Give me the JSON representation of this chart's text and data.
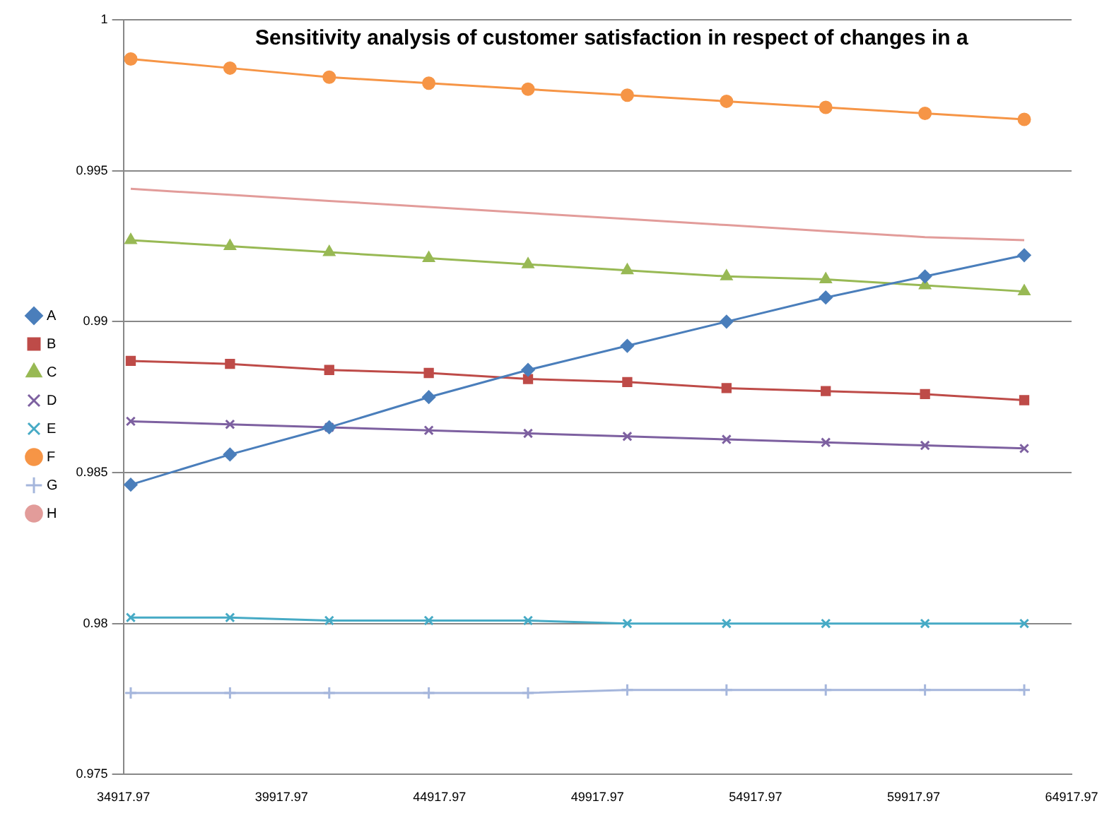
{
  "chart_data": {
    "type": "line",
    "title": "Sensitivity analysis of customer satisfaction in respect of changes in a",
    "x": [
      35150,
      38290,
      41430,
      44580,
      47720,
      50860,
      54000,
      57140,
      60280,
      63420
    ],
    "xlim": [
      34917.97,
      64917.97
    ],
    "xticks": [
      34917.97,
      39917.97,
      44917.97,
      49917.97,
      54917.97,
      59917.97,
      64917.97
    ],
    "ylim": [
      0.975,
      1
    ],
    "yticks": [
      0.975,
      0.98,
      0.985,
      0.99,
      0.995,
      1
    ],
    "grid": "y",
    "legend": "left",
    "series": [
      {
        "name": "A",
        "color": "#4a7ebb",
        "marker": "diamond",
        "values": [
          0.9846,
          0.9856,
          0.9865,
          0.9875,
          0.9884,
          0.9892,
          0.99,
          0.9908,
          0.9915,
          0.9922
        ]
      },
      {
        "name": "B",
        "color": "#be4b48",
        "marker": "square",
        "values": [
          0.9887,
          0.9886,
          0.9884,
          0.9883,
          0.9881,
          0.988,
          0.9878,
          0.9877,
          0.9876,
          0.9874
        ]
      },
      {
        "name": "C",
        "color": "#98b954",
        "marker": "triangle",
        "values": [
          0.9927,
          0.9925,
          0.9923,
          0.9921,
          0.9919,
          0.9917,
          0.9915,
          0.9914,
          0.9912,
          0.991
        ]
      },
      {
        "name": "D",
        "color": "#7d60a0",
        "marker": "cross",
        "values": [
          0.9867,
          0.9866,
          0.9865,
          0.9864,
          0.9863,
          0.9862,
          0.9861,
          0.986,
          0.9859,
          0.9858
        ]
      },
      {
        "name": "E",
        "color": "#46aac5",
        "marker": "cross",
        "values": [
          0.9802,
          0.9802,
          0.9801,
          0.9801,
          0.9801,
          0.98,
          0.98,
          0.98,
          0.98,
          0.98
        ]
      },
      {
        "name": "F",
        "color": "#f69546",
        "marker": "circle",
        "values": [
          0.9987,
          0.9984,
          0.9981,
          0.9979,
          0.9977,
          0.9975,
          0.9973,
          0.9971,
          0.9969,
          0.9967
        ]
      },
      {
        "name": "G",
        "color": "#a5b6dc",
        "marker": "plus",
        "values": [
          0.9777,
          0.9777,
          0.9777,
          0.9777,
          0.9777,
          0.9778,
          0.9778,
          0.9778,
          0.9778,
          0.9778
        ]
      },
      {
        "name": "H",
        "color": "#e29c9a",
        "marker": "none",
        "values": [
          0.9944,
          0.9942,
          0.994,
          0.9938,
          0.9936,
          0.9934,
          0.9932,
          0.993,
          0.9928,
          0.9927
        ]
      }
    ]
  }
}
